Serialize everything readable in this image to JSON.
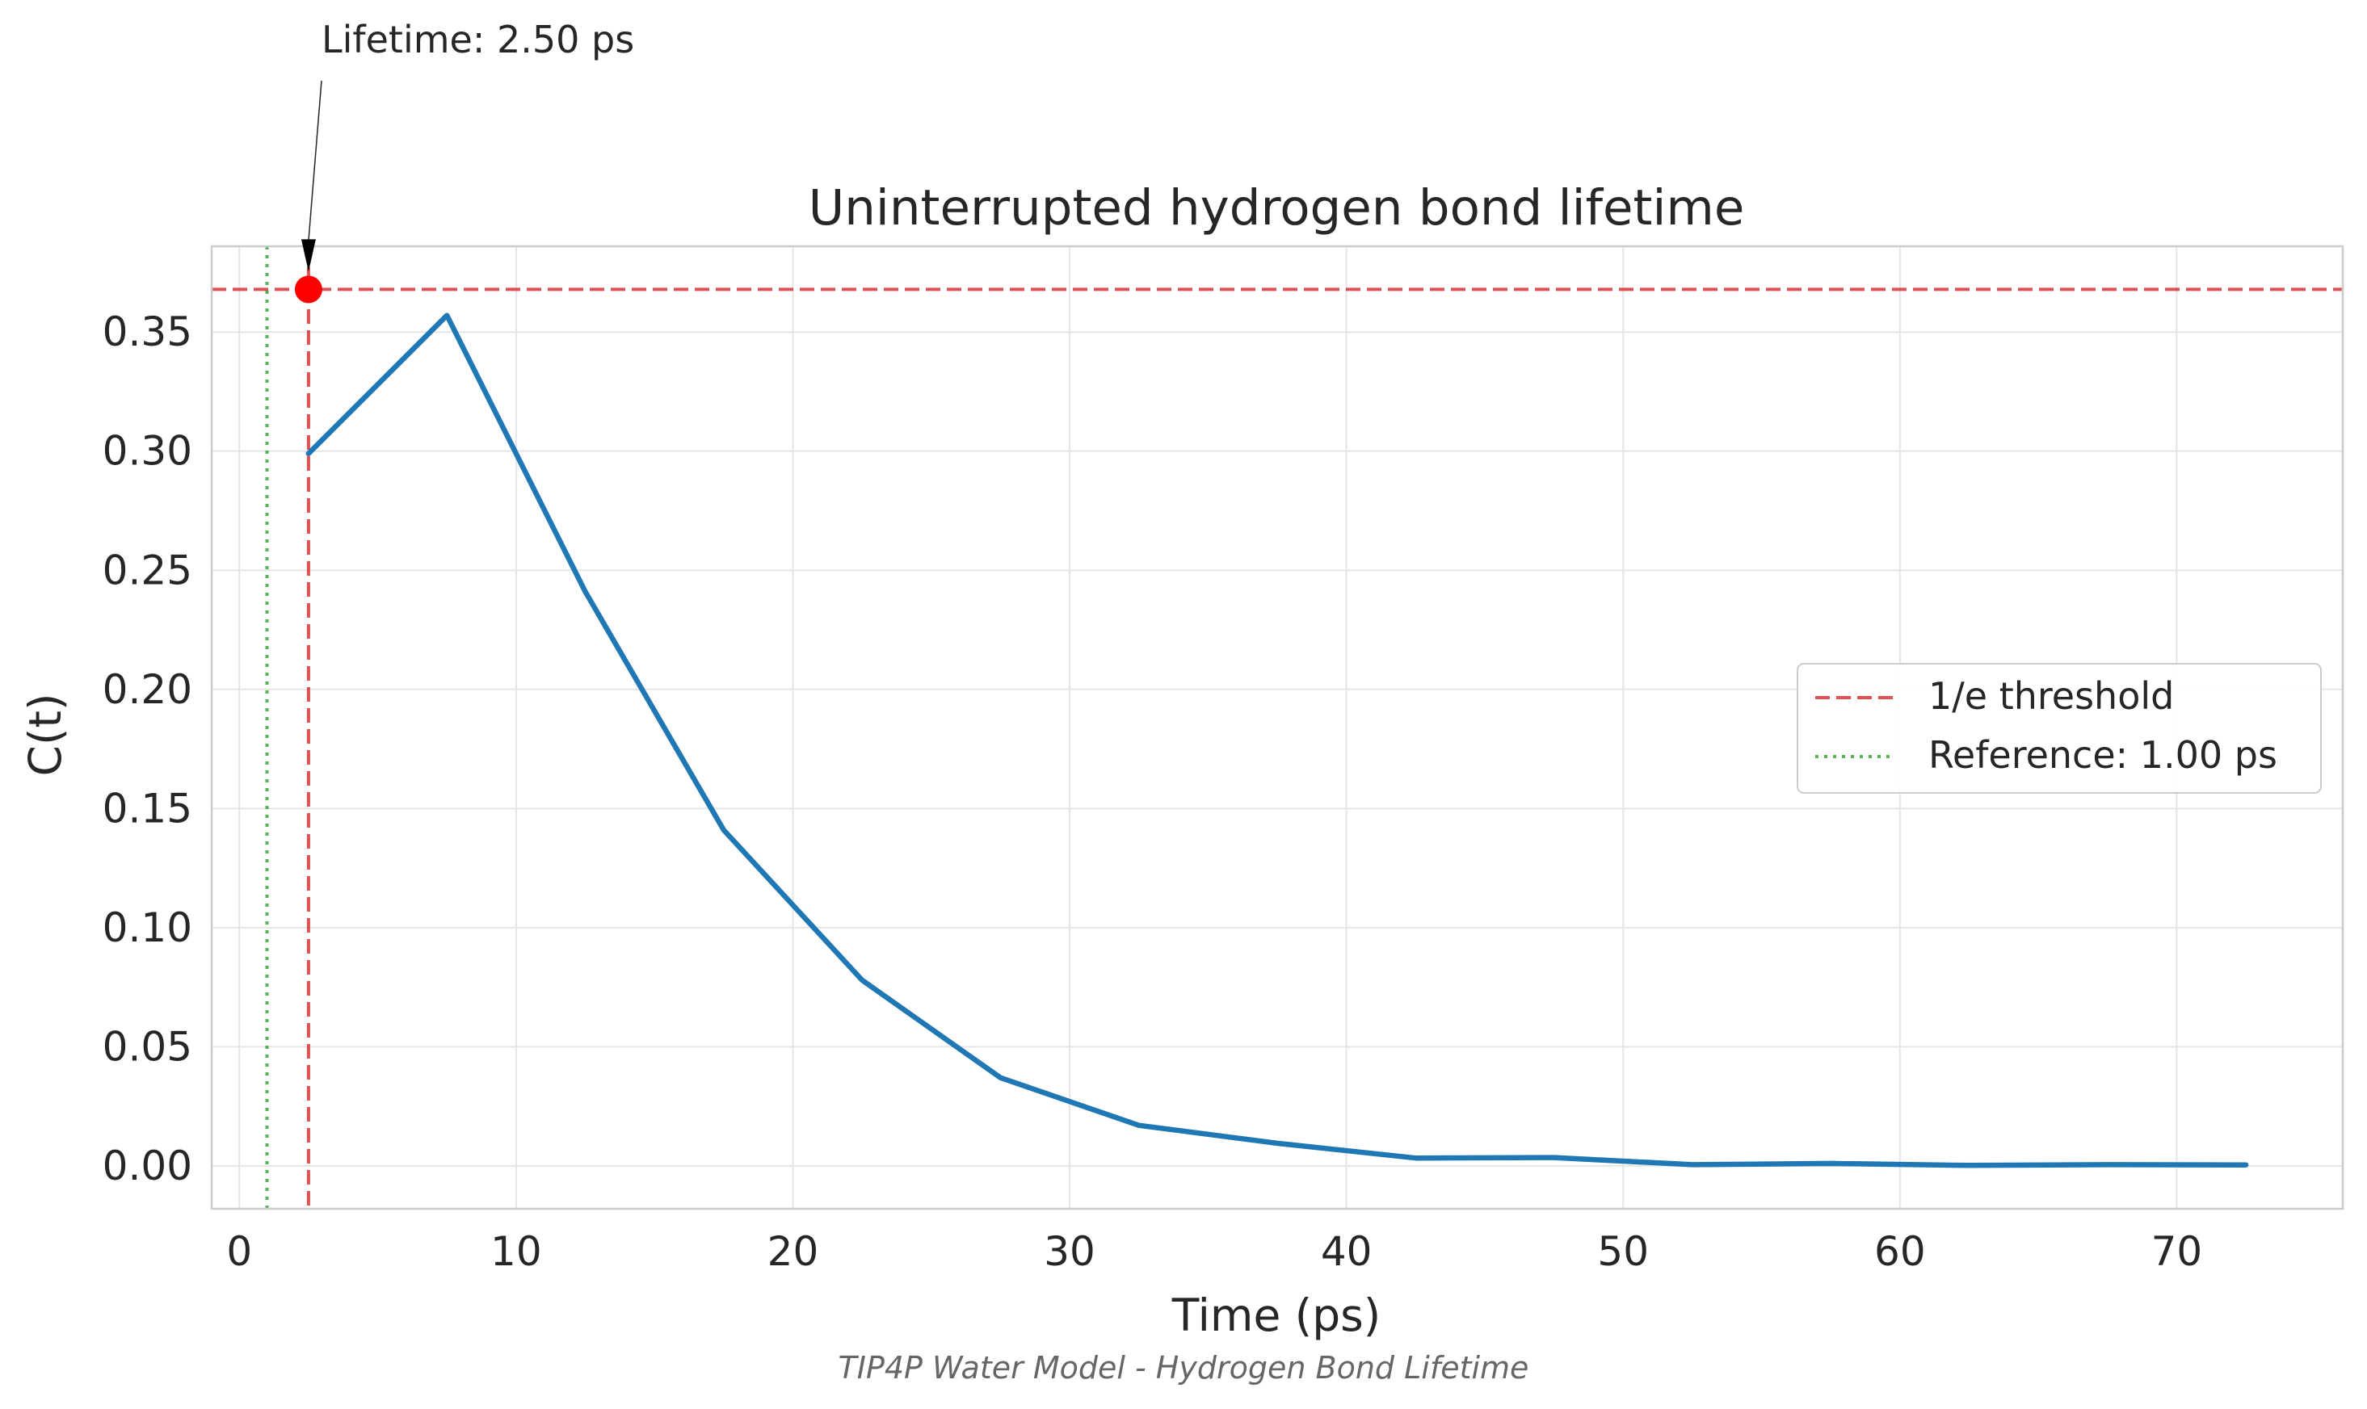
{
  "chart_data": {
    "type": "line",
    "title": "Uninterrupted hydrogen bond lifetime",
    "xlabel": "Time (ps)",
    "ylabel": "C(t)",
    "caption": "TIP4P Water Model - Hydrogen Bond Lifetime",
    "xlim": [
      -1,
      76
    ],
    "ylim": [
      -0.018,
      0.386
    ],
    "grid": true,
    "legend_position": "center-right",
    "x_ticks": [
      0,
      10,
      20,
      30,
      40,
      50,
      60,
      70
    ],
    "x_tick_labels": [
      "0",
      "10",
      "20",
      "30",
      "40",
      "50",
      "60",
      "70"
    ],
    "y_ticks": [
      0.0,
      0.05,
      0.1,
      0.15,
      0.2,
      0.25,
      0.3,
      0.35
    ],
    "y_tick_labels": [
      "0.00",
      "0.05",
      "0.10",
      "0.15",
      "0.20",
      "0.25",
      "0.30",
      "0.35"
    ],
    "series": [
      {
        "color": "#1f77b4",
        "x": [
          2.5,
          7.5,
          12.5,
          17.5,
          22.5,
          27.5,
          32.5,
          37.5,
          42.5,
          47.5,
          52.5,
          57.5,
          62.5,
          67.5,
          72.5
        ],
        "y": [
          0.299,
          0.357,
          0.241,
          0.141,
          0.078,
          0.037,
          0.017,
          0.0095,
          0.0033,
          0.0035,
          0.0005,
          0.001,
          0.0002,
          0.0005,
          0.0004
        ]
      }
    ],
    "reference_lines": [
      {
        "orientation": "horizontal",
        "value": 0.3679,
        "style": "dashed",
        "color": "#d62728",
        "legend": "1/e threshold"
      },
      {
        "orientation": "vertical",
        "value": 2.5,
        "style": "dashed",
        "color": "#d62728",
        "legend": ""
      },
      {
        "orientation": "vertical",
        "value": 1.0,
        "style": "dotted",
        "color": "#2ca02c",
        "legend": "Reference: 1.00 ps"
      }
    ],
    "marker": {
      "x": 2.5,
      "y": 0.3679,
      "color": "#ff0000"
    },
    "annotation": {
      "text": "Lifetime: 2.50 ps",
      "target_x": 2.5,
      "target_y": 0.3679
    },
    "legend_entries": [
      {
        "label": "1/e threshold",
        "style": "dashed",
        "color": "#d62728"
      },
      {
        "label": "Reference: 1.00 ps",
        "style": "dotted",
        "color": "#2ca02c"
      }
    ]
  }
}
